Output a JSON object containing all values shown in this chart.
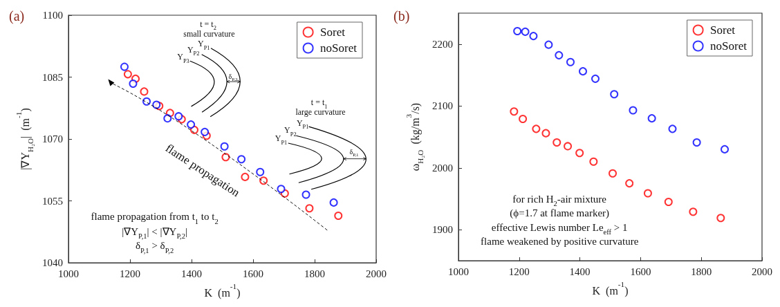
{
  "chart_data": [
    {
      "type": "scatter",
      "title": "(a)",
      "xlabel": "K  (m$^{-1}$)",
      "ylabel": "|∇Y$_{H₂O}$|  (m$^{-1}$)",
      "xlim": [
        1000,
        2000
      ],
      "xticks": [
        1000,
        1200,
        1400,
        1600,
        1800,
        2000
      ],
      "ylim": [
        1040,
        1100
      ],
      "yticks": [
        1040,
        1055,
        1070,
        1085,
        1100
      ],
      "grid": false,
      "legend": "top right",
      "marker": "circle",
      "series": [
        {
          "name": "Soret",
          "color": "#ff0000",
          "x": [
            1193,
            1218,
            1246,
            1295,
            1330,
            1368,
            1409,
            1449,
            1511,
            1574,
            1634,
            1703,
            1783,
            1877
          ],
          "values": [
            1085.7,
            1084.6,
            1081.5,
            1078.0,
            1076.3,
            1074.8,
            1072.2,
            1070.8,
            1065.6,
            1060.8,
            1059.9,
            1056.8,
            1053.2,
            1051.4
          ]
        },
        {
          "name": "noSoret",
          "color": "#0000ff",
          "x": [
            1182,
            1210,
            1254,
            1286,
            1322,
            1358,
            1398,
            1443,
            1507,
            1562,
            1623,
            1691,
            1772,
            1862
          ],
          "values": [
            1087.5,
            1083.4,
            1079.1,
            1078.3,
            1075.0,
            1075.5,
            1073.5,
            1071.7,
            1068.2,
            1065.1,
            1062.0,
            1057.9,
            1056.5,
            1054.6
          ]
        }
      ],
      "annotations": [
        "t = t$_{2}$",
        "small curvature",
        "Y$_{P1}$",
        "Y$_{P2}$",
        "Y$_{P3}$",
        "δ$_{P,2}$",
        "t = t$_{1}$",
        "large curvature",
        "Y$_{P1}$",
        "Y$_{P2}$",
        "Y$_{P1}$",
        "δ$_{P,1}$",
        "flame propagation",
        "flame propagation from t$_{1}$ to t$_{2}$",
        "|∇Y$_{P,1}$| < |∇Y$_{P,2}$|",
        "δ$_{P,1}$ > δ$_{P,2}$"
      ]
    },
    {
      "type": "scatter",
      "title": "(b)",
      "xlabel": "K  (m$^{-1}$)",
      "ylabel": "ω$_{H₂O}$  (kg/m$^{3}$/s)",
      "xlim": [
        1000,
        2000
      ],
      "xticks": [
        1000,
        1200,
        1400,
        1600,
        1800,
        2000
      ],
      "ylim": [
        1850,
        2250
      ],
      "yticks": [
        1900,
        2000,
        2100,
        2200
      ],
      "grid": false,
      "legend": "top right",
      "marker": "circle",
      "series": [
        {
          "name": "Soret",
          "color": "#ff0000",
          "x": [
            1183,
            1212,
            1256,
            1288,
            1324,
            1360,
            1399,
            1445,
            1508,
            1563,
            1624,
            1692,
            1773,
            1864
          ],
          "values": [
            2091,
            2079,
            2063,
            2056,
            2041,
            2035,
            2024,
            2010,
            1991,
            1975,
            1959,
            1945,
            1929,
            1919
          ]
        },
        {
          "name": "noSoret",
          "color": "#0000ff",
          "x": [
            1194,
            1220,
            1247,
            1297,
            1331,
            1369,
            1410,
            1451,
            1513,
            1575,
            1637,
            1705,
            1785,
            1877
          ],
          "values": [
            2221,
            2220,
            2213,
            2199,
            2182,
            2171,
            2156,
            2144,
            2119,
            2093,
            2080,
            2063,
            2041,
            2030
          ]
        }
      ],
      "annotations": [
        "for rich H$_{2}$-air mixture",
        "(ϕ=1.7 at flame marker)",
        "effective Lewis number Le$_{eff}$ > 1",
        "flame weakened by positive curvature"
      ]
    }
  ]
}
